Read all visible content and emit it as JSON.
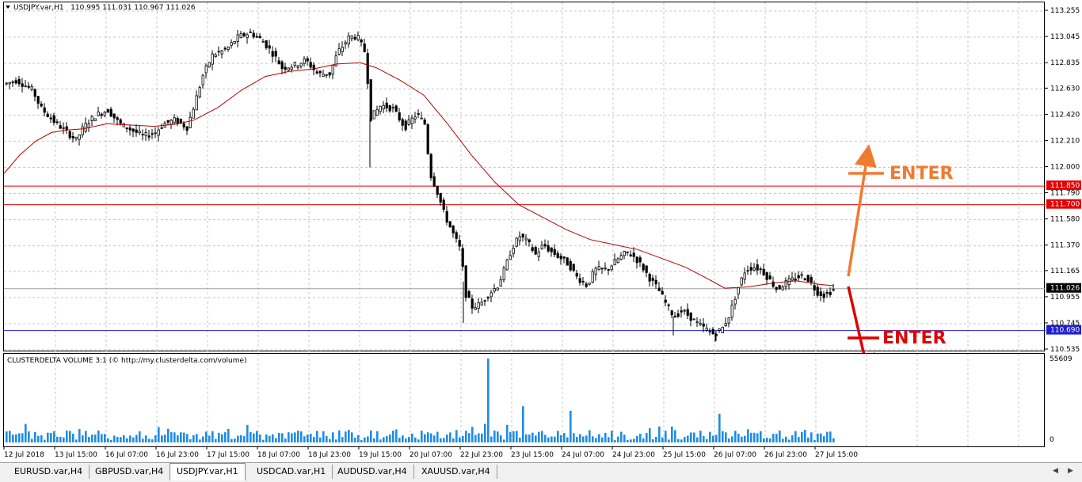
{
  "chart_title": {
    "symbol": "USDJPY.var,H1",
    "ohlc": "110.995 111.031 110.967 111.026"
  },
  "price_axis": {
    "ticks": [
      "113.255",
      "113.045",
      "112.835",
      "112.630",
      "112.420",
      "112.210",
      "112.000",
      "111.790",
      "111.580",
      "111.370",
      "111.165",
      "110.955",
      "110.745",
      "110.535"
    ],
    "labels": [
      {
        "text": "111.850",
        "color": "#e60000"
      },
      {
        "text": "111.700",
        "color": "#e60000"
      },
      {
        "text": "111.026",
        "color": "#000000"
      },
      {
        "text": "110.690",
        "color": "#1e1ed2"
      }
    ]
  },
  "volume_indicator": {
    "title": "CLUSTERDELTA VOLUME 3:1 (© http://my.clusterdelta.com/volume)",
    "max_label": "55609",
    "zero_label": "0"
  },
  "time_axis": [
    "12 Jul 2018",
    "13 Jul 15:00",
    "16 Jul 07:00",
    "16 Jul 23:00",
    "17 Jul 15:00",
    "18 Jul 07:00",
    "18 Jul 23:00",
    "19 Jul 15:00",
    "20 Jul 07:00",
    "22 Jul 23:00",
    "23 Jul 15:00",
    "24 Jul 07:00",
    "24 Jul 23:00",
    "25 Jul 15:00",
    "26 Jul 07:00",
    "26 Jul 23:00",
    "27 Jul 15:00"
  ],
  "annotations": {
    "enter_long": {
      "text": "ENTER",
      "color": "#f07a30"
    },
    "enter_short": {
      "text": "ENTER",
      "color": "#e00000"
    }
  },
  "tabs": [
    "EURUSD.var,H4",
    "GBPUSD.var,H4",
    "USDJPY.var,H1",
    "USDCAD.var,H1",
    "AUDUSD.var,H4",
    "XAUUSD.var,H4"
  ],
  "active_tab": "USDJPY.var,H1",
  "colors": {
    "grid": "#c8c8c8",
    "moving_average": "#b40000",
    "volume_bar": "#1e8ce6",
    "candle": "#000000"
  },
  "chart_data": {
    "type": "candlestick",
    "price_range": [
      110.5,
      113.3
    ],
    "horizontal_levels": [
      {
        "value": 111.85,
        "color": "#e60000"
      },
      {
        "value": 111.7,
        "color": "#e60000"
      },
      {
        "value": 110.69,
        "color": "#1e1ed2"
      },
      {
        "value": 111.026,
        "color": "#a0a0a0"
      }
    ],
    "price_path": [
      [
        0,
        112.67
      ],
      [
        15,
        112.7
      ],
      [
        35,
        112.62
      ],
      [
        45,
        112.48
      ],
      [
        60,
        112.38
      ],
      [
        75,
        112.3
      ],
      [
        90,
        112.22
      ],
      [
        100,
        112.33
      ],
      [
        115,
        112.42
      ],
      [
        130,
        112.46
      ],
      [
        145,
        112.35
      ],
      [
        160,
        112.3
      ],
      [
        175,
        112.25
      ],
      [
        190,
        112.28
      ],
      [
        200,
        112.35
      ],
      [
        215,
        112.38
      ],
      [
        230,
        112.32
      ],
      [
        240,
        112.52
      ],
      [
        250,
        112.74
      ],
      [
        262,
        112.9
      ],
      [
        280,
        112.95
      ],
      [
        295,
        113.05
      ],
      [
        310,
        113.08
      ],
      [
        325,
        113.02
      ],
      [
        340,
        112.9
      ],
      [
        350,
        112.8
      ],
      [
        365,
        112.82
      ],
      [
        380,
        112.86
      ],
      [
        395,
        112.75
      ],
      [
        410,
        112.75
      ],
      [
        420,
        112.92
      ],
      [
        435,
        113.05
      ],
      [
        445,
        113.05
      ],
      [
        455,
        112.92
      ],
      [
        462,
        112.4
      ],
      [
        475,
        112.5
      ],
      [
        490,
        112.47
      ],
      [
        505,
        112.32
      ],
      [
        520,
        112.43
      ],
      [
        530,
        112.35
      ],
      [
        537,
        111.95
      ],
      [
        545,
        111.82
      ],
      [
        555,
        111.62
      ],
      [
        565,
        111.48
      ],
      [
        575,
        111.34
      ],
      [
        582,
        110.98
      ],
      [
        590,
        110.88
      ],
      [
        600,
        110.9
      ],
      [
        610,
        110.98
      ],
      [
        622,
        111.05
      ],
      [
        632,
        111.2
      ],
      [
        640,
        111.35
      ],
      [
        650,
        111.45
      ],
      [
        660,
        111.4
      ],
      [
        670,
        111.3
      ],
      [
        680,
        111.38
      ],
      [
        690,
        111.32
      ],
      [
        700,
        111.28
      ],
      [
        712,
        111.22
      ],
      [
        722,
        111.12
      ],
      [
        735,
        111.05
      ],
      [
        745,
        111.18
      ],
      [
        760,
        111.18
      ],
      [
        775,
        111.27
      ],
      [
        785,
        111.32
      ],
      [
        795,
        111.28
      ],
      [
        805,
        111.2
      ],
      [
        815,
        111.1
      ],
      [
        825,
        111.02
      ],
      [
        835,
        110.9
      ],
      [
        845,
        110.8
      ],
      [
        855,
        110.85
      ],
      [
        865,
        110.8
      ],
      [
        875,
        110.74
      ],
      [
        885,
        110.7
      ],
      [
        895,
        110.66
      ],
      [
        905,
        110.7
      ],
      [
        915,
        110.82
      ],
      [
        925,
        111.02
      ],
      [
        935,
        111.18
      ],
      [
        945,
        111.2
      ],
      [
        955,
        111.18
      ],
      [
        965,
        111.1
      ],
      [
        975,
        111.02
      ],
      [
        985,
        111.07
      ],
      [
        995,
        111.1
      ],
      [
        1005,
        111.13
      ],
      [
        1015,
        111.1
      ],
      [
        1025,
        111.0
      ],
      [
        1035,
        110.97
      ],
      [
        1048,
        111.026
      ]
    ],
    "ma_path": [
      [
        0,
        111.95
      ],
      [
        20,
        112.1
      ],
      [
        40,
        112.21
      ],
      [
        60,
        112.28
      ],
      [
        80,
        112.3
      ],
      [
        100,
        112.31
      ],
      [
        130,
        112.35
      ],
      [
        160,
        112.34
      ],
      [
        190,
        112.33
      ],
      [
        220,
        112.35
      ],
      [
        240,
        112.38
      ],
      [
        270,
        112.48
      ],
      [
        300,
        112.62
      ],
      [
        330,
        112.73
      ],
      [
        360,
        112.77
      ],
      [
        390,
        112.79
      ],
      [
        420,
        112.83
      ],
      [
        450,
        112.84
      ],
      [
        470,
        112.8
      ],
      [
        500,
        112.7
      ],
      [
        530,
        112.58
      ],
      [
        560,
        112.35
      ],
      [
        590,
        112.1
      ],
      [
        620,
        111.88
      ],
      [
        650,
        111.7
      ],
      [
        680,
        111.6
      ],
      [
        710,
        111.5
      ],
      [
        740,
        111.42
      ],
      [
        770,
        111.38
      ],
      [
        800,
        111.34
      ],
      [
        830,
        111.27
      ],
      [
        860,
        111.2
      ],
      [
        890,
        111.1
      ],
      [
        910,
        111.03
      ],
      [
        940,
        111.04
      ],
      [
        970,
        111.07
      ],
      [
        1000,
        111.09
      ],
      [
        1030,
        111.06
      ],
      [
        1048,
        111.05
      ]
    ],
    "volume_spikes": [
      {
        "index": 152,
        "value": 55609
      },
      {
        "index": 163,
        "value": 24000
      },
      {
        "index": 178,
        "value": 21000
      },
      {
        "index": 225,
        "value": 19000
      },
      {
        "index": 276,
        "value": 18000
      }
    ]
  }
}
